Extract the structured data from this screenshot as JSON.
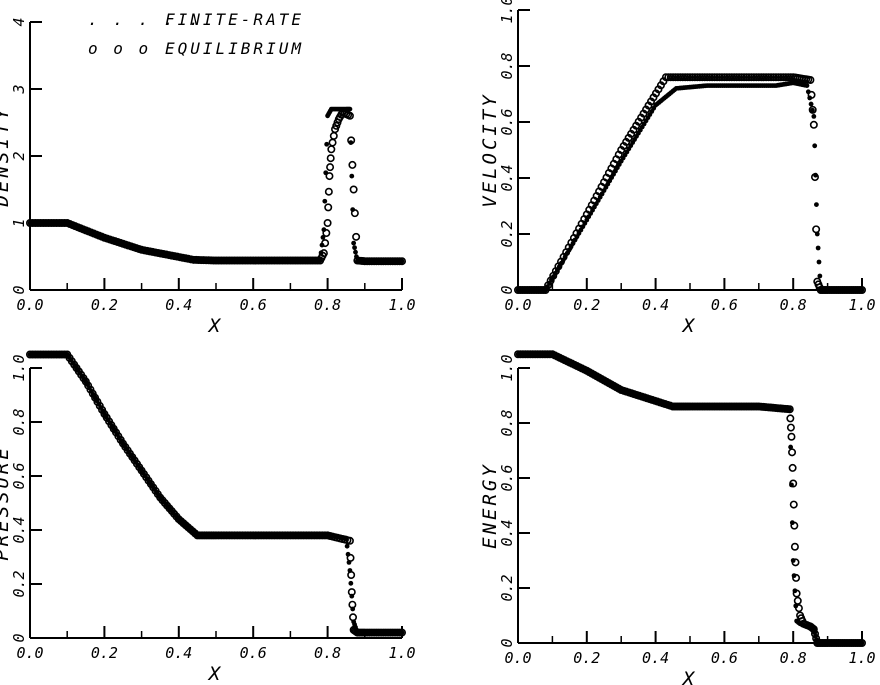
{
  "legend": {
    "finite_rate": "FINITE-RATE",
    "equilibrium": "EQUILIBRIUM",
    "finite_rate_marker": ". . . . .",
    "equilibrium_marker": "o  o  o"
  },
  "colors": {
    "ink": "#000000",
    "background": "#ffffff"
  },
  "chart_data": [
    {
      "type": "scatter",
      "ylabel": "DENSITY",
      "xlabel": "X",
      "xlim": [
        0.0,
        1.0
      ],
      "ylim": [
        0,
        4
      ],
      "xticks": [
        "0.0",
        "0.2",
        "0.4",
        "0.6",
        "0.8",
        "1.0"
      ],
      "yticks": [
        "0",
        "1",
        "2",
        "3",
        "4"
      ],
      "grid": false,
      "legend": "top-left",
      "series": [
        {
          "name": "FINITE-RATE",
          "x": [
            0.0,
            0.1,
            0.2,
            0.3,
            0.44,
            0.5,
            0.6,
            0.7,
            0.78,
            0.79,
            0.8,
            0.81,
            0.83,
            0.85,
            0.86,
            0.87,
            0.88,
            0.9,
            0.95,
            1.0
          ],
          "y": [
            1.0,
            1.0,
            0.78,
            0.6,
            0.45,
            0.44,
            0.44,
            0.44,
            0.44,
            0.9,
            2.6,
            2.7,
            2.7,
            2.7,
            2.7,
            0.7,
            0.43,
            0.43,
            0.43,
            0.43
          ]
        },
        {
          "name": "EQUILIBRIUM",
          "x": [
            0.0,
            0.1,
            0.2,
            0.3,
            0.44,
            0.5,
            0.6,
            0.7,
            0.78,
            0.79,
            0.8,
            0.805,
            0.81,
            0.82,
            0.83,
            0.84,
            0.86,
            0.87,
            0.88,
            0.9,
            0.95,
            1.0
          ],
          "y": [
            1.0,
            1.0,
            0.78,
            0.6,
            0.45,
            0.44,
            0.44,
            0.44,
            0.44,
            0.55,
            1.0,
            1.7,
            2.1,
            2.4,
            2.55,
            2.65,
            2.6,
            1.5,
            0.44,
            0.43,
            0.43,
            0.43
          ]
        }
      ]
    },
    {
      "type": "scatter",
      "ylabel": "VELOCITY",
      "xlabel": "X",
      "xlim": [
        0.0,
        1.0
      ],
      "ylim": [
        0,
        1.0
      ],
      "xticks": [
        "0.0",
        "0.2",
        "0.4",
        "0.6",
        "0.8",
        "1.0"
      ],
      "yticks": [
        "0",
        "0.2",
        "0.4",
        "0.6",
        "0.8",
        "1.0"
      ],
      "grid": false,
      "legend": "none",
      "series": [
        {
          "name": "FINITE-RATE",
          "x": [
            0.0,
            0.08,
            0.2,
            0.3,
            0.4,
            0.46,
            0.55,
            0.65,
            0.75,
            0.8,
            0.84,
            0.86,
            0.87,
            0.88,
            0.9,
            0.95,
            1.0
          ],
          "y": [
            0.0,
            0.0,
            0.25,
            0.46,
            0.66,
            0.72,
            0.73,
            0.73,
            0.73,
            0.74,
            0.73,
            0.62,
            0.2,
            0.0,
            0.0,
            0.0,
            0.0
          ]
        },
        {
          "name": "EQUILIBRIUM",
          "x": [
            0.0,
            0.08,
            0.2,
            0.3,
            0.43,
            0.5,
            0.6,
            0.7,
            0.8,
            0.85,
            0.86,
            0.87,
            0.88,
            0.9,
            0.95,
            1.0
          ],
          "y": [
            0.0,
            0.0,
            0.27,
            0.5,
            0.76,
            0.76,
            0.76,
            0.76,
            0.76,
            0.75,
            0.59,
            0.03,
            0.0,
            0.0,
            0.0,
            0.0
          ]
        }
      ]
    },
    {
      "type": "scatter",
      "ylabel": "PRESSURE",
      "xlabel": "X",
      "xlim": [
        0.0,
        1.0
      ],
      "ylim": [
        0,
        1.0
      ],
      "xticks": [
        "0.0",
        "0.2",
        "0.4",
        "0.6",
        "0.8",
        "1.0"
      ],
      "yticks": [
        "0",
        "0.2",
        "0.4",
        "0.6",
        "0.8",
        "1.0"
      ],
      "grid": false,
      "legend": "none",
      "series": [
        {
          "name": "FINITE-RATE",
          "x": [
            0.0,
            0.1,
            0.15,
            0.2,
            0.25,
            0.3,
            0.35,
            0.4,
            0.45,
            0.5,
            0.6,
            0.7,
            0.8,
            0.85,
            0.86,
            0.87,
            0.88,
            0.9,
            0.95,
            1.0
          ],
          "y": [
            1.05,
            1.05,
            0.95,
            0.83,
            0.72,
            0.62,
            0.52,
            0.44,
            0.38,
            0.38,
            0.38,
            0.38,
            0.38,
            0.37,
            0.25,
            0.06,
            0.02,
            0.02,
            0.02,
            0.02
          ]
        },
        {
          "name": "EQUILIBRIUM",
          "x": [
            0.0,
            0.1,
            0.15,
            0.2,
            0.25,
            0.3,
            0.35,
            0.4,
            0.45,
            0.5,
            0.6,
            0.7,
            0.8,
            0.86,
            0.865,
            0.87,
            0.88,
            0.9,
            0.95,
            1.0
          ],
          "y": [
            1.05,
            1.05,
            0.95,
            0.83,
            0.72,
            0.62,
            0.52,
            0.44,
            0.38,
            0.38,
            0.38,
            0.38,
            0.38,
            0.36,
            0.17,
            0.03,
            0.02,
            0.02,
            0.02,
            0.02
          ]
        }
      ]
    },
    {
      "type": "scatter",
      "ylabel": "ENERGY",
      "xlabel": "X",
      "xlim": [
        0.0,
        1.0
      ],
      "ylim": [
        0,
        1.0
      ],
      "xticks": [
        "0.0",
        "0.2",
        "0.4",
        "0.6",
        "0.8",
        "1.0"
      ],
      "yticks": [
        "0",
        "0.2",
        "0.4",
        "0.6",
        "0.8",
        "1.0"
      ],
      "grid": false,
      "legend": "none",
      "series": [
        {
          "name": "FINITE-RATE",
          "x": [
            0.0,
            0.1,
            0.2,
            0.3,
            0.45,
            0.5,
            0.6,
            0.7,
            0.79,
            0.8,
            0.81,
            0.82,
            0.84,
            0.86,
            0.87,
            0.9,
            0.95,
            1.0
          ],
          "y": [
            1.05,
            1.05,
            0.99,
            0.92,
            0.86,
            0.86,
            0.86,
            0.86,
            0.85,
            0.3,
            0.08,
            0.07,
            0.06,
            0.05,
            0.0,
            0.0,
            0.0,
            0.0
          ]
        },
        {
          "name": "EQUILIBRIUM",
          "x": [
            0.0,
            0.1,
            0.2,
            0.3,
            0.45,
            0.5,
            0.6,
            0.7,
            0.79,
            0.795,
            0.8,
            0.805,
            0.81,
            0.82,
            0.83,
            0.85,
            0.86,
            0.87,
            0.9,
            0.95,
            1.0
          ],
          "y": [
            1.05,
            1.05,
            0.99,
            0.92,
            0.86,
            0.86,
            0.86,
            0.86,
            0.85,
            0.75,
            0.58,
            0.35,
            0.18,
            0.1,
            0.07,
            0.06,
            0.05,
            0.0,
            0.0,
            0.0,
            0.0
          ]
        }
      ]
    }
  ]
}
